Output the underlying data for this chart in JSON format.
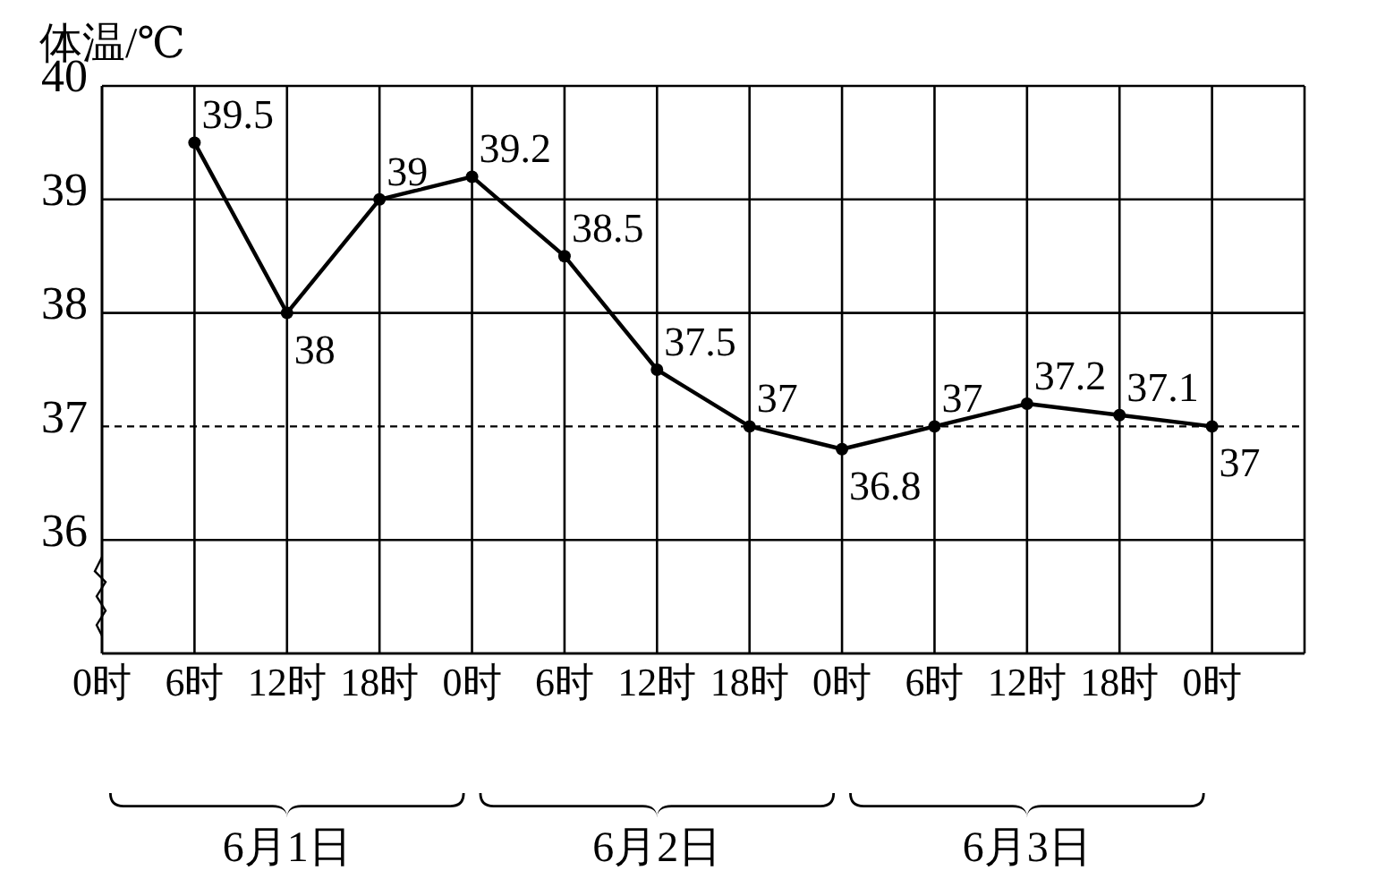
{
  "chart_data": {
    "type": "line",
    "ylabel": "体温/℃",
    "categories": [
      "0时",
      "6时",
      "12时",
      "18时",
      "0时",
      "6时",
      "12时",
      "18时",
      "0时",
      "6时",
      "12时",
      "18时",
      "0时"
    ],
    "series": [
      {
        "color": "#000000",
        "values": [
          null,
          39.5,
          38,
          39,
          39.2,
          38.5,
          37.5,
          37,
          36.8,
          37,
          37.2,
          37.1,
          37
        ]
      }
    ],
    "ylim": [
      35,
      40
    ],
    "yticks": [
      {
        "value": 35,
        "label": null
      },
      36,
      37,
      38,
      39,
      40
    ],
    "ref_lines": [
      {
        "axis": "y",
        "value": 37,
        "line_style": "dashed",
        "color": "#000000"
      }
    ],
    "annotations": [
      "6月1日",
      "6月2日",
      "6月3日"
    ],
    "grid": true,
    "marker": "circle",
    "line_style": "solid",
    "data_labels": true
  }
}
